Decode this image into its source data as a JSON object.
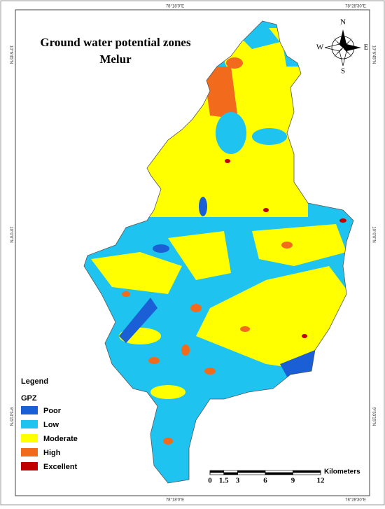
{
  "title": [
    "Ground water potential zones",
    "Melur"
  ],
  "compass": {
    "north": "N",
    "south": "S",
    "east": "E",
    "west": "W"
  },
  "coordinates": {
    "top": [
      "78°18'0\"E",
      "78°28'30\"E"
    ],
    "bottom": [
      "78°18'0\"E",
      "78°28'30\"E"
    ],
    "left": [
      "10°6'45\"N",
      "10°0'0\"N",
      "9°53'15\"N"
    ],
    "right": [
      "10°6'45\"N",
      "10°0'0\"N",
      "9°53'15\"N"
    ]
  },
  "legend": {
    "title": "Legend",
    "subtitle": "GPZ",
    "items": [
      {
        "name": "Poor",
        "color": "#1a5fd6"
      },
      {
        "name": "Low",
        "color": "#1ec3f0"
      },
      {
        "name": "Moderate",
        "color": "#ffff00"
      },
      {
        "name": "High",
        "color": "#f26b1d"
      },
      {
        "name": "Excellent",
        "color": "#c00000"
      }
    ]
  },
  "scale": {
    "ticks": [
      0,
      1.5,
      3,
      6,
      9,
      12
    ],
    "unit": "Kilometers"
  }
}
